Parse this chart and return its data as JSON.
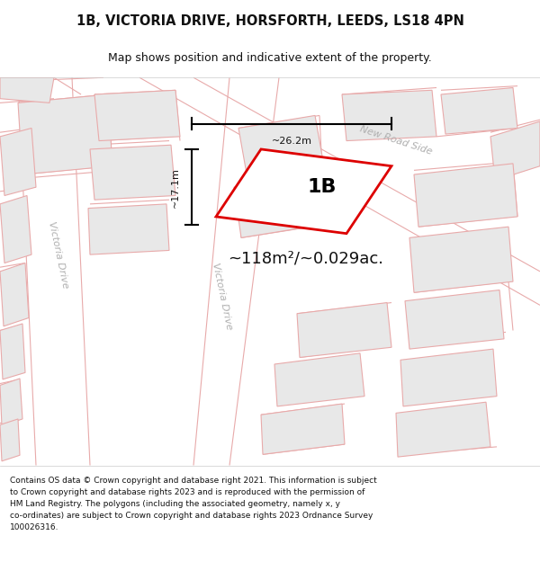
{
  "title_line1": "1B, VICTORIA DRIVE, HORSFORTH, LEEDS, LS18 4PN",
  "title_line2": "Map shows position and indicative extent of the property.",
  "area_text": "~118m²/~0.029ac.",
  "label_text": "1B",
  "dim_width": "~26.2m",
  "dim_height": "~17.1m",
  "footer_text": "Contains OS data © Crown copyright and database right 2021. This information is subject\nto Crown copyright and database rights 2023 and is reproduced with the permission of\nHM Land Registry. The polygons (including the associated geometry, namely x, y\nco-ordinates) are subject to Crown copyright and database rights 2023 Ordnance Survey\n100026316.",
  "map_bg": "#f7f7f7",
  "building_fill": "#e8e8e8",
  "building_edge": "#e8aaaa",
  "highlight_edge": "#dd0000",
  "highlight_fill": "#ffffff",
  "road_label_color": "#b0b0b0",
  "dim_color": "#111111",
  "area_color": "#111111",
  "title_color": "#111111",
  "footer_color": "#111111",
  "title_fontsize": 10.5,
  "subtitle_fontsize": 9,
  "area_fontsize": 13,
  "label_fontsize": 16,
  "dim_fontsize": 8,
  "road_label_fontsize": 8,
  "footer_fontsize": 6.5
}
